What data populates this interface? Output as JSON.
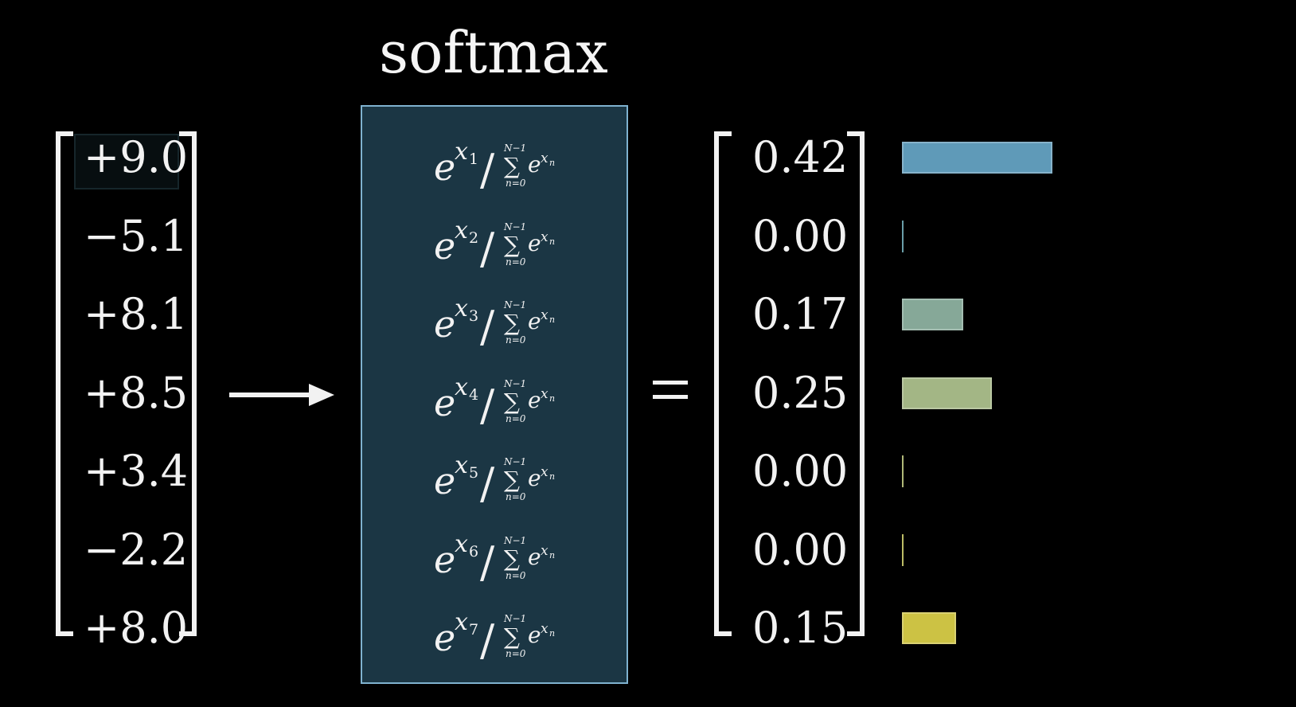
{
  "title": "softmax",
  "inputs": [
    "+9.0",
    "−5.1",
    "+8.1",
    "+8.5",
    "+3.4",
    "−2.2",
    "+8.0"
  ],
  "formula": {
    "base": "e",
    "var": "x",
    "subscripts": [
      "1",
      "2",
      "3",
      "4",
      "5",
      "6",
      "7"
    ],
    "sum_upper": "N−1",
    "sum_lower": "n=0",
    "sum_sub": "n",
    "sigma": "∑",
    "slash": "/"
  },
  "equals_sign": "=",
  "outputs": [
    "0.42",
    "0.00",
    "0.17",
    "0.25",
    "0.00",
    "0.00",
    "0.15"
  ],
  "bar_values": [
    0.42,
    0.0,
    0.17,
    0.25,
    0.0,
    0.0,
    0.15
  ],
  "bar_colors": [
    "#5f9ab8",
    "#6a9ea8",
    "#86a898",
    "#a3b685",
    "#b0b878",
    "#bcbc66",
    "#ccc244"
  ],
  "colors": {
    "background": "#000000",
    "box_fill": "#1b3644",
    "box_border": "#7fb2cf",
    "text": "#f2f2f2"
  }
}
